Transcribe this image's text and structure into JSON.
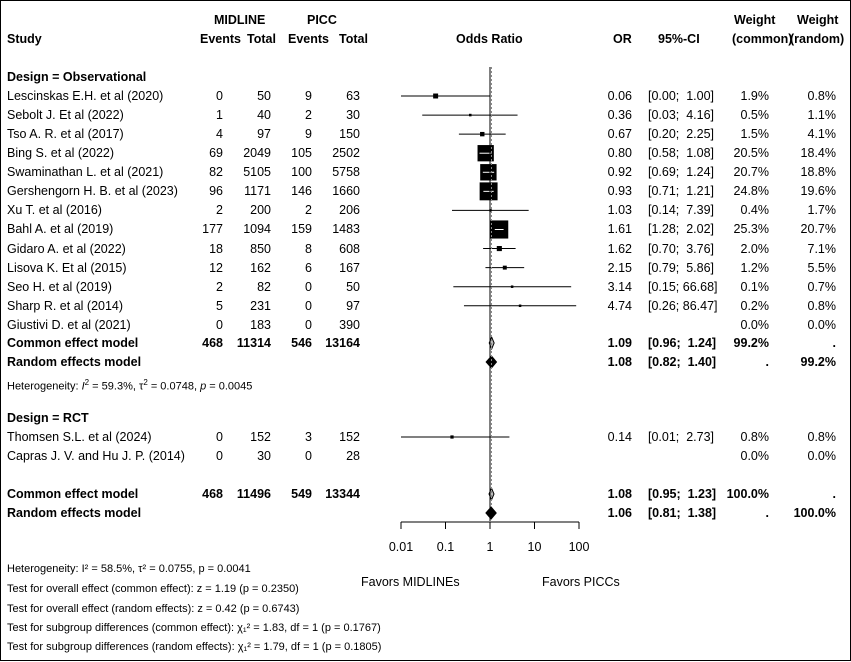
{
  "chart_data": {
    "type": "forest",
    "header": {
      "study": "Study",
      "group1": "MIDLINE",
      "group2": "PICC",
      "events": "Events",
      "total": "Total",
      "plot": "Odds Ratio",
      "or": "OR",
      "ci": "95%-CI",
      "weight": "Weight",
      "common": "(common)",
      "random": "(random)"
    },
    "x_axis": {
      "scale": "log",
      "ticks": [
        0.01,
        0.1,
        1,
        10,
        100
      ],
      "tick_labels": [
        "0.01",
        "0.1",
        "1",
        "10",
        "100"
      ],
      "favors_left": "Favors MIDLINEs",
      "favors_right": "Favors PICCs"
    },
    "subgroups": [
      {
        "label": "Design = Observational",
        "studies": [
          {
            "name": "Lescinskas E.H. et al (2020)",
            "e1": "0",
            "n1": "50",
            "e2": "9",
            "n2": "63",
            "or": 0.06,
            "lo": 0.0,
            "hi": 1.0,
            "or_text": "0.06",
            "ci_text": "[0.00;  1.00]",
            "wc": "1.9%",
            "wr": "0.8%"
          },
          {
            "name": "Sebolt J. Et al (2022)",
            "e1": "1",
            "n1": "40",
            "e2": "2",
            "n2": "30",
            "or": 0.36,
            "lo": 0.03,
            "hi": 4.16,
            "or_text": "0.36",
            "ci_text": "[0.03;  4.16]",
            "wc": "0.5%",
            "wr": "1.1%"
          },
          {
            "name": "Tso A. R. et al (2017)",
            "e1": "4",
            "n1": "97",
            "e2": "9",
            "n2": "150",
            "or": 0.67,
            "lo": 0.2,
            "hi": 2.25,
            "or_text": "0.67",
            "ci_text": "[0.20;  2.25]",
            "wc": "1.5%",
            "wr": "4.1%"
          },
          {
            "name": "Bing S. et al (2022)",
            "e1": "69",
            "n1": "2049",
            "e2": "105",
            "n2": "2502",
            "or": 0.8,
            "lo": 0.58,
            "hi": 1.08,
            "or_text": "0.80",
            "ci_text": "[0.58;  1.08]",
            "wc": "20.5%",
            "wr": "18.4%"
          },
          {
            "name": "Swaminathan L. et al (2021)",
            "e1": "82",
            "n1": "5105",
            "e2": "100",
            "n2": "5758",
            "or": 0.92,
            "lo": 0.69,
            "hi": 1.24,
            "or_text": "0.92",
            "ci_text": "[0.69;  1.24]",
            "wc": "20.7%",
            "wr": "18.8%"
          },
          {
            "name": "Gershengorn H. B. et al (2023)",
            "e1": "96",
            "n1": "1171",
            "e2": "146",
            "n2": "1660",
            "or": 0.93,
            "lo": 0.71,
            "hi": 1.21,
            "or_text": "0.93",
            "ci_text": "[0.71;  1.21]",
            "wc": "24.8%",
            "wr": "19.6%"
          },
          {
            "name": "Xu T. et al (2016)",
            "e1": "2",
            "n1": "200",
            "e2": "2",
            "n2": "206",
            "or": 1.03,
            "lo": 0.14,
            "hi": 7.39,
            "or_text": "1.03",
            "ci_text": "[0.14;  7.39]",
            "wc": "0.4%",
            "wr": "1.7%"
          },
          {
            "name": "Bahl A. et al (2019)",
            "e1": "177",
            "n1": "1094",
            "e2": "159",
            "n2": "1483",
            "or": 1.61,
            "lo": 1.28,
            "hi": 2.02,
            "or_text": "1.61",
            "ci_text": "[1.28;  2.02]",
            "wc": "25.3%",
            "wr": "20.7%"
          },
          {
            "name": "Gidaro A. et al (2022)",
            "e1": "18",
            "n1": "850",
            "e2": "8",
            "n2": "608",
            "or": 1.62,
            "lo": 0.7,
            "hi": 3.76,
            "or_text": "1.62",
            "ci_text": "[0.70;  3.76]",
            "wc": "2.0%",
            "wr": "7.1%"
          },
          {
            "name": "Lisova K. Et al (2015)",
            "e1": "12",
            "n1": "162",
            "e2": "6",
            "n2": "167",
            "or": 2.15,
            "lo": 0.79,
            "hi": 5.86,
            "or_text": "2.15",
            "ci_text": "[0.79;  5.86]",
            "wc": "1.2%",
            "wr": "5.5%"
          },
          {
            "name": "Seo H. et al (2019)",
            "e1": "2",
            "n1": "82",
            "e2": "0",
            "n2": "50",
            "or": 3.14,
            "lo": 0.15,
            "hi": 66.68,
            "or_text": "3.14",
            "ci_text": "[0.15; 66.68]",
            "wc": "0.1%",
            "wr": "0.7%"
          },
          {
            "name": "Sharp R. et al (2014)",
            "e1": "5",
            "n1": "231",
            "e2": "0",
            "n2": "97",
            "or": 4.74,
            "lo": 0.26,
            "hi": 86.47,
            "or_text": "4.74",
            "ci_text": "[0.26; 86.47]",
            "wc": "0.2%",
            "wr": "0.8%"
          },
          {
            "name": "Giustivi D. et al (2021)",
            "e1": "0",
            "n1": "183",
            "e2": "0",
            "n2": "390",
            "or": null,
            "lo": null,
            "hi": null,
            "or_text": "",
            "ci_text": "",
            "wc": "0.0%",
            "wr": "0.0%"
          }
        ],
        "common": {
          "label": "Common effect model",
          "e1": "468",
          "n1": "11314",
          "e2": "546",
          "n2": "13164",
          "or": 1.09,
          "lo": 0.96,
          "hi": 1.24,
          "or_text": "1.09",
          "ci_text": "[0.96;  1.24]",
          "wc": "99.2%",
          "wr": "."
        },
        "random": {
          "label": "Random effects model",
          "or": 1.08,
          "lo": 0.82,
          "hi": 1.4,
          "or_text": "1.08",
          "ci_text": "[0.82;  1.40]",
          "wc": ".",
          "wr": "99.2%"
        },
        "het": {
          "pre": "Heterogeneity: ",
          "i": "I",
          "sup": "2",
          "mid": " = 59.3%, τ",
          "mid2": " = 0.0748, ",
          "p": "p",
          "post": " = 0.0045"
        }
      },
      {
        "label": "Design = RCT",
        "studies": [
          {
            "name": "Thomsen S.L. et al (2024)",
            "e1": "0",
            "n1": "152",
            "e2": "3",
            "n2": "152",
            "or": 0.14,
            "lo": 0.01,
            "hi": 2.73,
            "or_text": "0.14",
            "ci_text": "[0.01;  2.73]",
            "wc": "0.8%",
            "wr": "0.8%"
          },
          {
            "name": "Capras J. V. and Hu J. P. (2014)",
            "e1": "0",
            "n1": "30",
            "e2": "0",
            "n2": "28",
            "or": null,
            "lo": null,
            "hi": null,
            "or_text": "",
            "ci_text": "",
            "wc": "0.0%",
            "wr": "0.0%"
          }
        ]
      }
    ],
    "overall": {
      "common": {
        "label": "Common effect model",
        "e1": "468",
        "n1": "11496",
        "e2": "549",
        "n2": "13344",
        "or": 1.08,
        "lo": 0.95,
        "hi": 1.23,
        "or_text": "1.08",
        "ci_text": "[0.95;  1.23]",
        "wc": "100.0%",
        "wr": "."
      },
      "random": {
        "label": "Random effects model",
        "or": 1.06,
        "lo": 0.81,
        "hi": 1.38,
        "or_text": "1.06",
        "ci_text": "[0.81;  1.38]",
        "wc": ".",
        "wr": "100.0%"
      }
    },
    "footer": [
      {
        "text": "Heterogeneity: I² = 58.5%, τ² = 0.0755, p = 0.0041"
      },
      {
        "text": "Test for overall effect (common effect): z = 1.19 (p = 0.2350)"
      },
      {
        "text": "Test for overall effect (random effects): z = 0.42 (p = 0.6743)"
      },
      {
        "text": "Test for subgroup differences (common effect): χ₁² = 1.83, df = 1 (p = 0.1767)"
      },
      {
        "text": "Test for subgroup differences (random effects): χ₁² = 1.79, df = 1 (p = 0.1805)"
      }
    ]
  }
}
